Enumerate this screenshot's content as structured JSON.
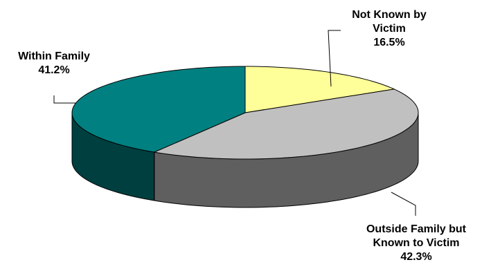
{
  "chart_data": {
    "type": "pie",
    "style": "3d",
    "slices": [
      {
        "label_lines": [
          "Not Known by",
          "Victim",
          "16.5%"
        ],
        "value": 16.5,
        "color": "#ffff99"
      },
      {
        "label_lines": [
          "Outside Family but",
          "Known to Victim",
          "42.3%"
        ],
        "value": 42.3,
        "color": "#c0c0c0",
        "side_color": "#5f5f5f"
      },
      {
        "label_lines": [
          "Within Family",
          "41.2%"
        ],
        "value": 41.2,
        "color": "#008080",
        "side_color": "#003f3f"
      }
    ]
  }
}
